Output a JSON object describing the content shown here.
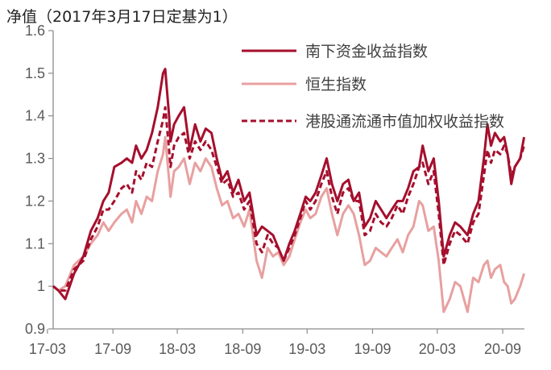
{
  "chart_data": {
    "type": "line",
    "title": "净值（2017年3月17日定基为1）",
    "xlabel": "",
    "ylabel": "",
    "ylim": [
      0.9,
      1.6
    ],
    "yticks": [
      "0.9",
      "1",
      "1.1",
      "1.2",
      "1.3",
      "1.4",
      "1.5",
      "1.6"
    ],
    "xticks": [
      "17-03",
      "17-09",
      "18-03",
      "18-09",
      "19-03",
      "19-09",
      "20-03",
      "20-09"
    ],
    "legend_position": "top-right",
    "grid": false,
    "series": [
      {
        "name": "南下资金收益指数",
        "color": "#a50f2d",
        "style": "solid",
        "values": [
          [
            "2017-03-17",
            1.0
          ],
          [
            "2017-04-01",
            0.99
          ],
          [
            "2017-04-20",
            0.97
          ],
          [
            "2017-05-15",
            1.03
          ],
          [
            "2017-06-10",
            1.07
          ],
          [
            "2017-07-01",
            1.13
          ],
          [
            "2017-07-20",
            1.16
          ],
          [
            "2017-08-05",
            1.2
          ],
          [
            "2017-08-20",
            1.22
          ],
          [
            "2017-09-05",
            1.28
          ],
          [
            "2017-09-25",
            1.29
          ],
          [
            "2017-10-10",
            1.3
          ],
          [
            "2017-10-25",
            1.29
          ],
          [
            "2017-11-05",
            1.33
          ],
          [
            "2017-11-20",
            1.3
          ],
          [
            "2017-12-05",
            1.32
          ],
          [
            "2017-12-20",
            1.36
          ],
          [
            "2018-01-05",
            1.42
          ],
          [
            "2018-01-20",
            1.5
          ],
          [
            "2018-01-26",
            1.51
          ],
          [
            "2018-02-06",
            1.4
          ],
          [
            "2018-02-10",
            1.34
          ],
          [
            "2018-02-20",
            1.38
          ],
          [
            "2018-03-05",
            1.4
          ],
          [
            "2018-03-20",
            1.42
          ],
          [
            "2018-04-05",
            1.32
          ],
          [
            "2018-04-20",
            1.38
          ],
          [
            "2018-05-05",
            1.34
          ],
          [
            "2018-05-20",
            1.37
          ],
          [
            "2018-06-05",
            1.36
          ],
          [
            "2018-06-20",
            1.3
          ],
          [
            "2018-07-05",
            1.25
          ],
          [
            "2018-07-20",
            1.27
          ],
          [
            "2018-08-05",
            1.22
          ],
          [
            "2018-08-20",
            1.25
          ],
          [
            "2018-09-05",
            1.2
          ],
          [
            "2018-09-20",
            1.22
          ],
          [
            "2018-10-10",
            1.12
          ],
          [
            "2018-10-25",
            1.14
          ],
          [
            "2018-11-10",
            1.13
          ],
          [
            "2018-11-25",
            1.12
          ],
          [
            "2018-12-10",
            1.09
          ],
          [
            "2018-12-25",
            1.06
          ],
          [
            "2019-01-10",
            1.1
          ],
          [
            "2019-01-25",
            1.13
          ],
          [
            "2019-02-10",
            1.17
          ],
          [
            "2019-02-25",
            1.21
          ],
          [
            "2019-03-10",
            1.2
          ],
          [
            "2019-03-25",
            1.22
          ],
          [
            "2019-04-10",
            1.26
          ],
          [
            "2019-04-25",
            1.3
          ],
          [
            "2019-05-10",
            1.24
          ],
          [
            "2019-05-25",
            1.2
          ],
          [
            "2019-06-10",
            1.24
          ],
          [
            "2019-06-25",
            1.25
          ],
          [
            "2019-07-10",
            1.2
          ],
          [
            "2019-07-25",
            1.22
          ],
          [
            "2019-08-10",
            1.14
          ],
          [
            "2019-08-25",
            1.16
          ],
          [
            "2019-09-10",
            1.2
          ],
          [
            "2019-09-25",
            1.18
          ],
          [
            "2019-10-10",
            1.16
          ],
          [
            "2019-10-25",
            1.18
          ],
          [
            "2019-11-10",
            1.2
          ],
          [
            "2019-11-25",
            1.2
          ],
          [
            "2019-12-10",
            1.23
          ],
          [
            "2019-12-25",
            1.27
          ],
          [
            "2020-01-10",
            1.28
          ],
          [
            "2020-01-20",
            1.33
          ],
          [
            "2020-02-05",
            1.27
          ],
          [
            "2020-02-20",
            1.3
          ],
          [
            "2020-03-05",
            1.2
          ],
          [
            "2020-03-19",
            1.07
          ],
          [
            "2020-04-05",
            1.12
          ],
          [
            "2020-04-20",
            1.15
          ],
          [
            "2020-05-05",
            1.14
          ],
          [
            "2020-05-25",
            1.12
          ],
          [
            "2020-06-10",
            1.17
          ],
          [
            "2020-06-25",
            1.2
          ],
          [
            "2020-07-10",
            1.3
          ],
          [
            "2020-07-20",
            1.38
          ],
          [
            "2020-07-30",
            1.33
          ],
          [
            "2020-08-10",
            1.36
          ],
          [
            "2020-08-25",
            1.34
          ],
          [
            "2020-09-05",
            1.35
          ],
          [
            "2020-09-15",
            1.31
          ],
          [
            "2020-09-25",
            1.24
          ],
          [
            "2020-10-05",
            1.28
          ],
          [
            "2020-10-20",
            1.3
          ],
          [
            "2020-10-31",
            1.35
          ]
        ]
      },
      {
        "name": "恒生指数",
        "color": "#e8a0a0",
        "style": "solid",
        "values": [
          [
            "2017-03-17",
            1.0
          ],
          [
            "2017-04-01",
            0.99
          ],
          [
            "2017-04-20",
            1.0
          ],
          [
            "2017-05-15",
            1.05
          ],
          [
            "2017-06-10",
            1.07
          ],
          [
            "2017-07-01",
            1.1
          ],
          [
            "2017-07-20",
            1.12
          ],
          [
            "2017-08-05",
            1.15
          ],
          [
            "2017-08-20",
            1.13
          ],
          [
            "2017-09-05",
            1.15
          ],
          [
            "2017-09-25",
            1.17
          ],
          [
            "2017-10-10",
            1.18
          ],
          [
            "2017-10-25",
            1.15
          ],
          [
            "2017-11-05",
            1.2
          ],
          [
            "2017-11-20",
            1.17
          ],
          [
            "2017-12-05",
            1.21
          ],
          [
            "2017-12-20",
            1.2
          ],
          [
            "2018-01-05",
            1.27
          ],
          [
            "2018-01-20",
            1.31
          ],
          [
            "2018-01-26",
            1.35
          ],
          [
            "2018-02-06",
            1.25
          ],
          [
            "2018-02-10",
            1.21
          ],
          [
            "2018-02-20",
            1.27
          ],
          [
            "2018-03-05",
            1.28
          ],
          [
            "2018-03-20",
            1.3
          ],
          [
            "2018-04-05",
            1.24
          ],
          [
            "2018-04-20",
            1.29
          ],
          [
            "2018-05-05",
            1.27
          ],
          [
            "2018-05-20",
            1.3
          ],
          [
            "2018-06-05",
            1.28
          ],
          [
            "2018-06-20",
            1.23
          ],
          [
            "2018-07-05",
            1.19
          ],
          [
            "2018-07-20",
            1.2
          ],
          [
            "2018-08-05",
            1.16
          ],
          [
            "2018-08-20",
            1.17
          ],
          [
            "2018-09-05",
            1.14
          ],
          [
            "2018-09-20",
            1.18
          ],
          [
            "2018-10-10",
            1.06
          ],
          [
            "2018-10-25",
            1.02
          ],
          [
            "2018-11-10",
            1.09
          ],
          [
            "2018-11-25",
            1.07
          ],
          [
            "2018-12-10",
            1.08
          ],
          [
            "2018-12-25",
            1.05
          ],
          [
            "2019-01-10",
            1.07
          ],
          [
            "2019-01-25",
            1.11
          ],
          [
            "2019-02-10",
            1.15
          ],
          [
            "2019-02-25",
            1.18
          ],
          [
            "2019-03-10",
            1.16
          ],
          [
            "2019-03-25",
            1.17
          ],
          [
            "2019-04-10",
            1.21
          ],
          [
            "2019-04-25",
            1.23
          ],
          [
            "2019-05-10",
            1.17
          ],
          [
            "2019-05-25",
            1.12
          ],
          [
            "2019-06-10",
            1.17
          ],
          [
            "2019-06-25",
            1.19
          ],
          [
            "2019-07-10",
            1.17
          ],
          [
            "2019-07-25",
            1.12
          ],
          [
            "2019-08-10",
            1.05
          ],
          [
            "2019-08-25",
            1.06
          ],
          [
            "2019-09-10",
            1.09
          ],
          [
            "2019-09-25",
            1.08
          ],
          [
            "2019-10-10",
            1.07
          ],
          [
            "2019-10-25",
            1.09
          ],
          [
            "2019-11-10",
            1.11
          ],
          [
            "2019-11-25",
            1.08
          ],
          [
            "2019-12-10",
            1.12
          ],
          [
            "2019-12-25",
            1.14
          ],
          [
            "2020-01-10",
            1.2
          ],
          [
            "2020-01-20",
            1.19
          ],
          [
            "2020-02-05",
            1.13
          ],
          [
            "2020-02-20",
            1.14
          ],
          [
            "2020-03-05",
            1.06
          ],
          [
            "2020-03-19",
            0.94
          ],
          [
            "2020-04-05",
            0.97
          ],
          [
            "2020-04-20",
            1.01
          ],
          [
            "2020-05-05",
            1.0
          ],
          [
            "2020-05-25",
            0.94
          ],
          [
            "2020-06-10",
            1.02
          ],
          [
            "2020-06-25",
            1.01
          ],
          [
            "2020-07-10",
            1.05
          ],
          [
            "2020-07-20",
            1.06
          ],
          [
            "2020-07-30",
            1.02
          ],
          [
            "2020-08-10",
            1.04
          ],
          [
            "2020-08-25",
            1.05
          ],
          [
            "2020-09-05",
            1.01
          ],
          [
            "2020-09-15",
            1.0
          ],
          [
            "2020-09-25",
            0.96
          ],
          [
            "2020-10-05",
            0.97
          ],
          [
            "2020-10-20",
            1.0
          ],
          [
            "2020-10-31",
            1.03
          ]
        ]
      },
      {
        "name": "港股通流通市值加权收益指数",
        "color": "#a50f2d",
        "style": "dashed",
        "values": [
          [
            "2017-03-17",
            1.0
          ],
          [
            "2017-04-01",
            0.99
          ],
          [
            "2017-04-20",
            0.99
          ],
          [
            "2017-05-15",
            1.04
          ],
          [
            "2017-06-10",
            1.06
          ],
          [
            "2017-07-01",
            1.11
          ],
          [
            "2017-07-20",
            1.14
          ],
          [
            "2017-08-05",
            1.18
          ],
          [
            "2017-08-20",
            1.18
          ],
          [
            "2017-09-05",
            1.2
          ],
          [
            "2017-09-25",
            1.23
          ],
          [
            "2017-10-10",
            1.24
          ],
          [
            "2017-10-25",
            1.22
          ],
          [
            "2017-11-05",
            1.27
          ],
          [
            "2017-11-20",
            1.25
          ],
          [
            "2017-12-05",
            1.29
          ],
          [
            "2017-12-20",
            1.28
          ],
          [
            "2018-01-05",
            1.34
          ],
          [
            "2018-01-20",
            1.39
          ],
          [
            "2018-01-26",
            1.42
          ],
          [
            "2018-02-06",
            1.32
          ],
          [
            "2018-02-10",
            1.28
          ],
          [
            "2018-02-20",
            1.33
          ],
          [
            "2018-03-05",
            1.35
          ],
          [
            "2018-03-20",
            1.36
          ],
          [
            "2018-04-05",
            1.3
          ],
          [
            "2018-04-20",
            1.34
          ],
          [
            "2018-05-05",
            1.32
          ],
          [
            "2018-05-20",
            1.34
          ],
          [
            "2018-06-05",
            1.32
          ],
          [
            "2018-06-20",
            1.28
          ],
          [
            "2018-07-05",
            1.24
          ],
          [
            "2018-07-20",
            1.25
          ],
          [
            "2018-08-05",
            1.21
          ],
          [
            "2018-08-20",
            1.22
          ],
          [
            "2018-09-05",
            1.18
          ],
          [
            "2018-09-20",
            1.2
          ],
          [
            "2018-10-10",
            1.1
          ],
          [
            "2018-10-25",
            1.08
          ],
          [
            "2018-11-10",
            1.12
          ],
          [
            "2018-11-25",
            1.1
          ],
          [
            "2018-12-10",
            1.09
          ],
          [
            "2018-12-25",
            1.06
          ],
          [
            "2019-01-10",
            1.09
          ],
          [
            "2019-01-25",
            1.12
          ],
          [
            "2019-02-10",
            1.16
          ],
          [
            "2019-02-25",
            1.2
          ],
          [
            "2019-03-10",
            1.18
          ],
          [
            "2019-03-25",
            1.2
          ],
          [
            "2019-04-10",
            1.24
          ],
          [
            "2019-04-25",
            1.27
          ],
          [
            "2019-05-10",
            1.21
          ],
          [
            "2019-05-25",
            1.17
          ],
          [
            "2019-06-10",
            1.22
          ],
          [
            "2019-06-25",
            1.23
          ],
          [
            "2019-07-10",
            1.2
          ],
          [
            "2019-07-25",
            1.2
          ],
          [
            "2019-08-10",
            1.12
          ],
          [
            "2019-08-25",
            1.13
          ],
          [
            "2019-09-10",
            1.17
          ],
          [
            "2019-09-25",
            1.15
          ],
          [
            "2019-10-10",
            1.14
          ],
          [
            "2019-10-25",
            1.16
          ],
          [
            "2019-11-10",
            1.19
          ],
          [
            "2019-11-25",
            1.17
          ],
          [
            "2019-12-10",
            1.21
          ],
          [
            "2019-12-25",
            1.24
          ],
          [
            "2020-01-10",
            1.28
          ],
          [
            "2020-01-20",
            1.29
          ],
          [
            "2020-02-05",
            1.24
          ],
          [
            "2020-02-20",
            1.27
          ],
          [
            "2020-03-05",
            1.17
          ],
          [
            "2020-03-19",
            1.05
          ],
          [
            "2020-04-05",
            1.1
          ],
          [
            "2020-04-20",
            1.13
          ],
          [
            "2020-05-05",
            1.12
          ],
          [
            "2020-05-25",
            1.1
          ],
          [
            "2020-06-10",
            1.15
          ],
          [
            "2020-06-25",
            1.17
          ],
          [
            "2020-07-10",
            1.26
          ],
          [
            "2020-07-20",
            1.32
          ],
          [
            "2020-07-30",
            1.29
          ],
          [
            "2020-08-10",
            1.32
          ],
          [
            "2020-08-25",
            1.31
          ],
          [
            "2020-09-05",
            1.33
          ],
          [
            "2020-09-15",
            1.31
          ],
          [
            "2020-09-25",
            1.26
          ],
          [
            "2020-10-05",
            1.28
          ],
          [
            "2020-10-20",
            1.3
          ],
          [
            "2020-10-31",
            1.33
          ]
        ]
      }
    ]
  }
}
